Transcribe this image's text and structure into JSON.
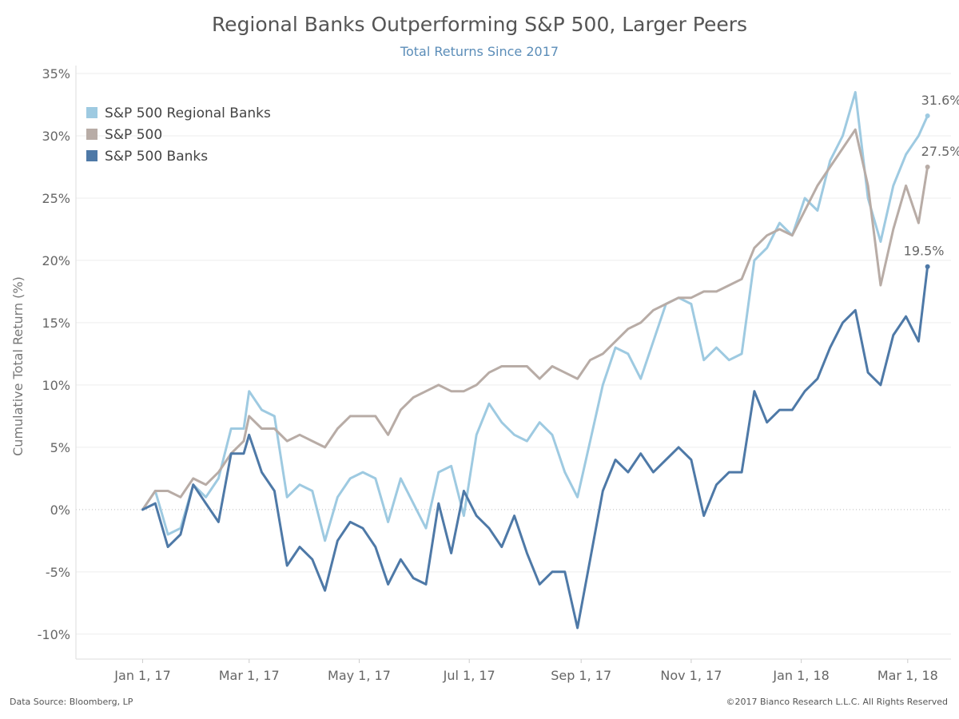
{
  "chart_data": {
    "type": "line",
    "title": "Regional Banks Outperforming S&P 500, Larger Peers",
    "subtitle": "Total Returns Since 2017",
    "ylabel": "Cumulative Total Return (%)",
    "ylim": [
      -12,
      35
    ],
    "yticks": [
      35,
      30,
      25,
      20,
      15,
      10,
      5,
      0,
      -5,
      -10
    ],
    "ytick_labels": [
      "35%",
      "30%",
      "25%",
      "20%",
      "15%",
      "10%",
      "5%",
      "0%",
      "-5%",
      "-10%"
    ],
    "xlim": [
      "2016-11-25",
      "2018-03-25"
    ],
    "xticks": [
      "2017-01-01",
      "2017-03-01",
      "2017-05-01",
      "2017-07-01",
      "2017-09-01",
      "2017-11-01",
      "2018-01-01",
      "2018-03-01"
    ],
    "xtick_labels": [
      "Jan 1, 17",
      "Mar 1, 17",
      "May 1, 17",
      "Jul 1, 17",
      "Sep 1, 17",
      "Nov 1, 17",
      "Jan 1, 18",
      "Mar 1, 18"
    ],
    "legend_position": "top-left",
    "grid": true,
    "series": [
      {
        "name": "S&P 500 Regional Banks",
        "color": "#9ecae1",
        "end_label": "31.6%",
        "x": [
          "2017-01-01",
          "2017-01-08",
          "2017-01-15",
          "2017-01-22",
          "2017-01-29",
          "2017-02-05",
          "2017-02-12",
          "2017-02-19",
          "2017-02-26",
          "2017-03-01",
          "2017-03-08",
          "2017-03-15",
          "2017-03-22",
          "2017-03-29",
          "2017-04-05",
          "2017-04-12",
          "2017-04-19",
          "2017-04-26",
          "2017-05-03",
          "2017-05-10",
          "2017-05-17",
          "2017-05-24",
          "2017-05-31",
          "2017-06-07",
          "2017-06-14",
          "2017-06-21",
          "2017-06-28",
          "2017-07-05",
          "2017-07-12",
          "2017-07-19",
          "2017-07-26",
          "2017-08-02",
          "2017-08-09",
          "2017-08-16",
          "2017-08-23",
          "2017-08-30",
          "2017-09-06",
          "2017-09-13",
          "2017-09-20",
          "2017-09-27",
          "2017-10-04",
          "2017-10-11",
          "2017-10-18",
          "2017-10-25",
          "2017-11-01",
          "2017-11-08",
          "2017-11-15",
          "2017-11-22",
          "2017-11-29",
          "2017-12-06",
          "2017-12-13",
          "2017-12-20",
          "2017-12-27",
          "2018-01-03",
          "2018-01-10",
          "2018-01-17",
          "2018-01-24",
          "2018-01-31",
          "2018-02-07",
          "2018-02-14",
          "2018-02-21",
          "2018-02-28",
          "2018-03-07",
          "2018-03-12"
        ],
        "values": [
          0,
          1.5,
          -2,
          -1.5,
          2,
          1,
          2.5,
          6.5,
          6.5,
          9.5,
          8,
          7.5,
          1,
          2,
          1.5,
          -2.5,
          1,
          2.5,
          3,
          2.5,
          -1,
          2.5,
          0.5,
          -1.5,
          3,
          3.5,
          -0.5,
          6,
          8.5,
          7,
          6,
          5.5,
          7,
          6,
          3,
          1,
          5.5,
          10,
          13,
          12.5,
          10.5,
          13.5,
          16.5,
          17,
          16.5,
          12,
          13,
          12,
          12.5,
          20,
          21,
          23,
          22,
          25,
          24,
          28,
          30,
          33.5,
          25,
          21.5,
          26,
          28.5,
          30,
          31.6
        ]
      },
      {
        "name": "S&P 500",
        "color": "#b8aca6",
        "end_label": "27.5%",
        "x": [
          "2017-01-01",
          "2017-01-08",
          "2017-01-15",
          "2017-01-22",
          "2017-01-29",
          "2017-02-05",
          "2017-02-12",
          "2017-02-19",
          "2017-02-26",
          "2017-03-01",
          "2017-03-08",
          "2017-03-15",
          "2017-03-22",
          "2017-03-29",
          "2017-04-05",
          "2017-04-12",
          "2017-04-19",
          "2017-04-26",
          "2017-05-03",
          "2017-05-10",
          "2017-05-17",
          "2017-05-24",
          "2017-05-31",
          "2017-06-07",
          "2017-06-14",
          "2017-06-21",
          "2017-06-28",
          "2017-07-05",
          "2017-07-12",
          "2017-07-19",
          "2017-07-26",
          "2017-08-02",
          "2017-08-09",
          "2017-08-16",
          "2017-08-23",
          "2017-08-30",
          "2017-09-06",
          "2017-09-13",
          "2017-09-20",
          "2017-09-27",
          "2017-10-04",
          "2017-10-11",
          "2017-10-18",
          "2017-10-25",
          "2017-11-01",
          "2017-11-08",
          "2017-11-15",
          "2017-11-22",
          "2017-11-29",
          "2017-12-06",
          "2017-12-13",
          "2017-12-20",
          "2017-12-27",
          "2018-01-03",
          "2018-01-10",
          "2018-01-17",
          "2018-01-24",
          "2018-01-31",
          "2018-02-07",
          "2018-02-14",
          "2018-02-21",
          "2018-02-28",
          "2018-03-07",
          "2018-03-12"
        ],
        "values": [
          0,
          1.5,
          1.5,
          1,
          2.5,
          2,
          3,
          4.5,
          5.5,
          7.5,
          6.5,
          6.5,
          5.5,
          6,
          5.5,
          5,
          6.5,
          7.5,
          7.5,
          7.5,
          6,
          8,
          9,
          9.5,
          10,
          9.5,
          9.5,
          10,
          11,
          11.5,
          11.5,
          11.5,
          10.5,
          11.5,
          11,
          10.5,
          12,
          12.5,
          13.5,
          14.5,
          15,
          16,
          16.5,
          17,
          17,
          17.5,
          17.5,
          18,
          18.5,
          21,
          22,
          22.5,
          22,
          24,
          26,
          27.5,
          29,
          30.5,
          26,
          18,
          22.5,
          26,
          23,
          27.5
        ]
      },
      {
        "name": "S&P 500 Banks",
        "color": "#4e79a7",
        "end_label": "19.5%",
        "x": [
          "2017-01-01",
          "2017-01-08",
          "2017-01-15",
          "2017-01-22",
          "2017-01-29",
          "2017-02-05",
          "2017-02-12",
          "2017-02-19",
          "2017-02-26",
          "2017-03-01",
          "2017-03-08",
          "2017-03-15",
          "2017-03-22",
          "2017-03-29",
          "2017-04-05",
          "2017-04-12",
          "2017-04-19",
          "2017-04-26",
          "2017-05-03",
          "2017-05-10",
          "2017-05-17",
          "2017-05-24",
          "2017-05-31",
          "2017-06-07",
          "2017-06-14",
          "2017-06-21",
          "2017-06-28",
          "2017-07-05",
          "2017-07-12",
          "2017-07-19",
          "2017-07-26",
          "2017-08-02",
          "2017-08-09",
          "2017-08-16",
          "2017-08-23",
          "2017-08-30",
          "2017-09-06",
          "2017-09-13",
          "2017-09-20",
          "2017-09-27",
          "2017-10-04",
          "2017-10-11",
          "2017-10-18",
          "2017-10-25",
          "2017-11-01",
          "2017-11-08",
          "2017-11-15",
          "2017-11-22",
          "2017-11-29",
          "2017-12-06",
          "2017-12-13",
          "2017-12-20",
          "2017-12-27",
          "2018-01-03",
          "2018-01-10",
          "2018-01-17",
          "2018-01-24",
          "2018-01-31",
          "2018-02-07",
          "2018-02-14",
          "2018-02-21",
          "2018-02-28",
          "2018-03-07",
          "2018-03-12"
        ],
        "values": [
          0,
          0.5,
          -3,
          -2,
          2,
          0.5,
          -1,
          4.5,
          4.5,
          6,
          3,
          1.5,
          -4.5,
          -3,
          -4,
          -6.5,
          -2.5,
          -1,
          -1.5,
          -3,
          -6,
          -4,
          -5.5,
          -6,
          0.5,
          -3.5,
          1.5,
          -0.5,
          -1.5,
          -3,
          -0.5,
          -3.5,
          -6,
          -5,
          -5,
          -9.5,
          -4,
          1.5,
          4,
          3,
          4.5,
          3,
          4,
          5,
          4,
          -0.5,
          2,
          3,
          3,
          9.5,
          7,
          8,
          8,
          9.5,
          10.5,
          13,
          15,
          16,
          11,
          10,
          14,
          15.5,
          13.5,
          19.5
        ]
      }
    ]
  },
  "footer": {
    "source": "Data Source: Bloomberg, LP",
    "copyright": "©2017 Bianco Research L.L.C.  All Rights Reserved"
  }
}
